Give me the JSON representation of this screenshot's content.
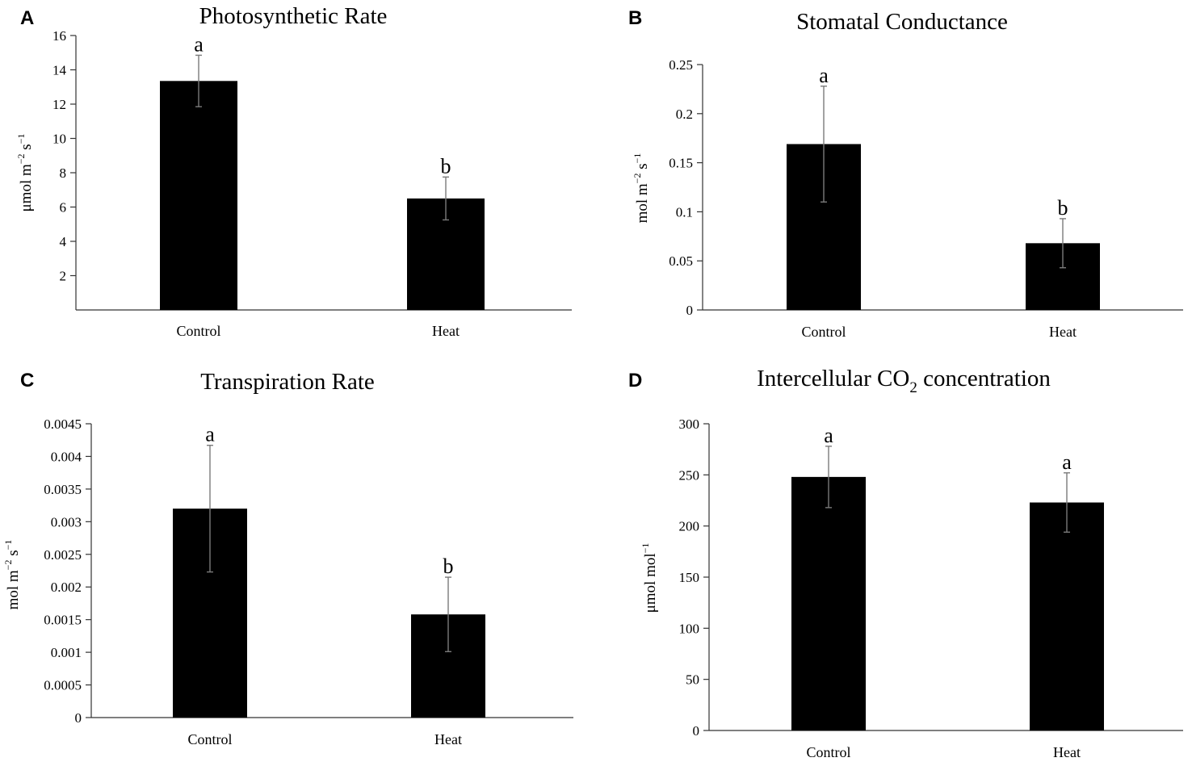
{
  "chart_data": [
    {
      "panel": "A",
      "type": "bar",
      "title": "Photosynthetic Rate",
      "ylabel": {
        "base": "μmol m",
        "exp1": "−2",
        "mid": " s",
        "exp2": "−1"
      },
      "categories": [
        "Control",
        "Heat"
      ],
      "values": [
        13.35,
        6.5
      ],
      "errors": [
        1.5,
        1.25
      ],
      "letters": [
        "a",
        "b"
      ],
      "ylim": [
        0,
        16
      ],
      "ticks": [
        2,
        4,
        6,
        8,
        10,
        12,
        14,
        16
      ],
      "tick_labels": [
        "2",
        "4",
        "6",
        "8",
        "10",
        "12",
        "14",
        "16"
      ]
    },
    {
      "panel": "B",
      "type": "bar",
      "title": "Stomatal Conductance",
      "ylabel": {
        "base": "mol m",
        "exp1": "−2",
        "mid": " s",
        "exp2": "−1"
      },
      "categories": [
        "Control",
        "Heat"
      ],
      "values": [
        0.169,
        0.068
      ],
      "errors": [
        0.059,
        0.025
      ],
      "letters": [
        "a",
        "b"
      ],
      "ylim": [
        0,
        0.25
      ],
      "ticks": [
        0,
        0.05,
        0.1,
        0.15,
        0.2,
        0.25
      ],
      "tick_labels": [
        "0",
        "0.05",
        "0.1",
        "0.15",
        "0.2",
        "0.25"
      ]
    },
    {
      "panel": "C",
      "type": "bar",
      "title": "Transpiration Rate",
      "ylabel": {
        "base": "mol m",
        "exp1": "−2",
        "mid": " s",
        "exp2": "−1"
      },
      "categories": [
        "Control",
        "Heat"
      ],
      "values": [
        0.0032,
        0.00158
      ],
      "errors": [
        0.00097,
        0.00057
      ],
      "letters": [
        "a",
        "b"
      ],
      "ylim": [
        0,
        0.0045
      ],
      "ticks": [
        0,
        0.0005,
        0.001,
        0.0015,
        0.002,
        0.0025,
        0.003,
        0.0035,
        0.004,
        0.0045
      ],
      "tick_labels": [
        "0",
        "0.0005",
        "0.001",
        "0.0015",
        "0.002",
        "0.0025",
        "0.003",
        "0.0035",
        "0.004",
        "0.0045"
      ]
    },
    {
      "panel": "D",
      "type": "bar",
      "title": {
        "pre": "Intercellular CO",
        "sub": "2",
        "post": " concentration"
      },
      "ylabel": {
        "base": "μmol mol",
        "exp1": "−1",
        "mid": "",
        "exp2": ""
      },
      "categories": [
        "Control",
        "Heat"
      ],
      "values": [
        248,
        223
      ],
      "errors": [
        30,
        29
      ],
      "letters": [
        "a",
        "a"
      ],
      "ylim": [
        0,
        300
      ],
      "ticks": [
        0,
        50,
        100,
        150,
        200,
        250,
        300
      ],
      "tick_labels": [
        "0",
        "50",
        "100",
        "150",
        "200",
        "250",
        "300"
      ]
    }
  ]
}
